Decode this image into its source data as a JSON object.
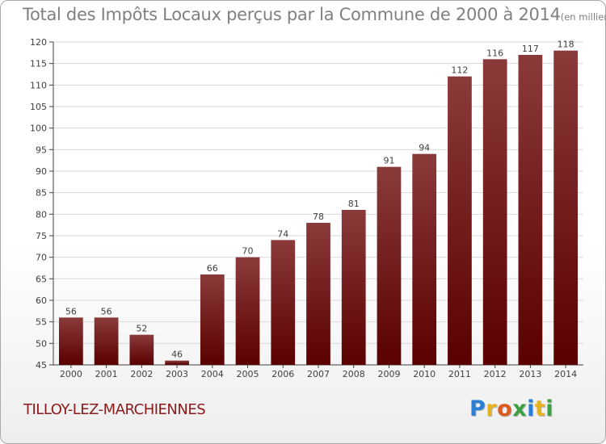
{
  "title": "Total des Impôts Locaux perçus par la Commune de 2000 à 2014",
  "title_unit": "(en milliers d'€)",
  "commune_name": "TILLOY-LEZ-MARCHIENNES",
  "logo": {
    "letters": [
      "P",
      "r",
      "o",
      "x",
      "i",
      "t",
      "i"
    ],
    "colors": [
      "#2b7fd4",
      "#e8b21c",
      "#e05a1e",
      "#3aa040",
      "#2b7fd4",
      "#e8b21c",
      "#3aa040"
    ]
  },
  "colors": {
    "bar_top": "#8b3a3a",
    "bar_bottom": "#5a0000",
    "grid": "#d9d9d9",
    "axis": "#404040"
  },
  "chart_data": {
    "type": "bar",
    "title": "Total des Impôts Locaux perçus par la Commune de 2000 à 2014",
    "xlabel": "",
    "ylabel": "",
    "categories": [
      "2000",
      "2001",
      "2002",
      "2003",
      "2004",
      "2005",
      "2006",
      "2007",
      "2008",
      "2009",
      "2010",
      "2011",
      "2012",
      "2013",
      "2014"
    ],
    "values": [
      56,
      56,
      52,
      46,
      66,
      70,
      74,
      78,
      81,
      91,
      94,
      112,
      116,
      117,
      118
    ],
    "ylim": [
      45,
      120
    ],
    "yticks": [
      45,
      50,
      55,
      60,
      65,
      70,
      75,
      80,
      85,
      90,
      95,
      100,
      105,
      110,
      115,
      120
    ],
    "grid": true,
    "legend": "none"
  }
}
